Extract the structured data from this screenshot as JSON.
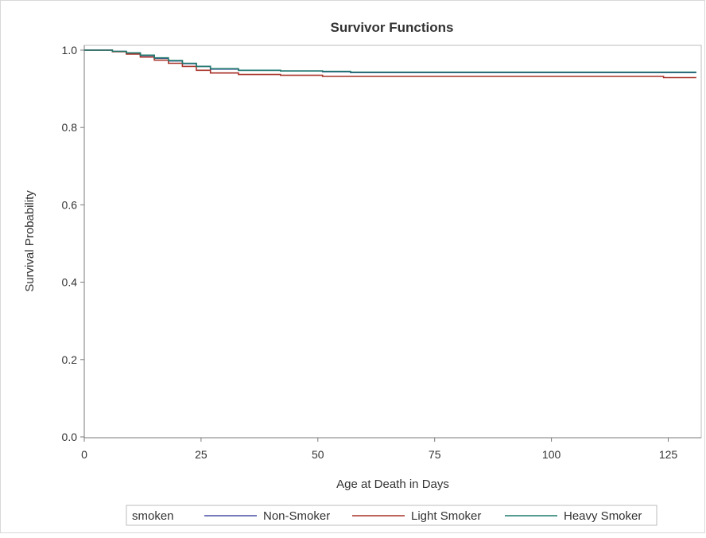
{
  "chart_data": {
    "type": "line",
    "title": "Survivor Functions",
    "xlabel": "Age at Death in Days",
    "ylabel": "Survival Probability",
    "xlim": [
      0,
      131
    ],
    "ylim": [
      0,
      1.02
    ],
    "x_ticks": [
      0,
      25,
      50,
      75,
      100,
      125
    ],
    "y_ticks": [
      0.0,
      0.2,
      0.4,
      0.6,
      0.8,
      1.0
    ],
    "x_tick_labels": [
      "0",
      "25",
      "50",
      "75",
      "100",
      "125"
    ],
    "y_tick_labels": [
      "0.0",
      "0.2",
      "0.4",
      "0.6",
      "0.8",
      "1.0"
    ],
    "grid": false,
    "step": true,
    "legend": {
      "title": "smoken",
      "position": "bottom"
    },
    "series": [
      {
        "name": "Non-Smoker",
        "color": "#4a4fa3",
        "x": [
          0,
          6,
          9,
          12,
          15,
          18,
          21,
          24,
          27,
          33,
          42,
          51,
          57,
          131
        ],
        "y": [
          1.0,
          0.997,
          0.992,
          0.986,
          0.979,
          0.972,
          0.965,
          0.958,
          0.951,
          0.948,
          0.946,
          0.944,
          0.942,
          0.942
        ]
      },
      {
        "name": "Light Smoker",
        "color": "#a83228",
        "x": [
          0,
          6,
          9,
          12,
          15,
          18,
          21,
          24,
          27,
          33,
          42,
          51,
          124,
          131
        ],
        "y": [
          1.0,
          0.996,
          0.99,
          0.982,
          0.974,
          0.966,
          0.958,
          0.948,
          0.941,
          0.937,
          0.935,
          0.932,
          0.929,
          0.929
        ]
      },
      {
        "name": "Heavy Smoker",
        "color": "#1f7a6c",
        "x": [
          0,
          6,
          9,
          12,
          15,
          18,
          21,
          24,
          27,
          33,
          42,
          51,
          57,
          131
        ],
        "y": [
          1.0,
          0.997,
          0.993,
          0.987,
          0.98,
          0.973,
          0.966,
          0.958,
          0.952,
          0.948,
          0.946,
          0.945,
          0.943,
          0.943
        ]
      }
    ]
  }
}
